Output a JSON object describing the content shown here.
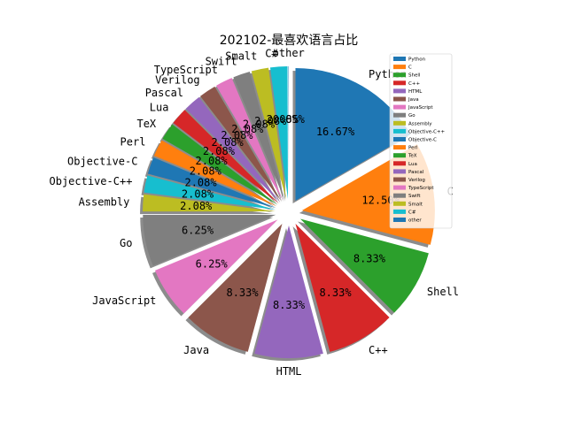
{
  "chart_data": {
    "type": "pie",
    "title": "202102-最喜欢语言占比",
    "legend_position": "top-right",
    "startangle_deg": 90,
    "counterclock": false,
    "shadow": true,
    "slices": [
      {
        "label": "Python",
        "value": 16.67,
        "pct_label": "16.67%",
        "color": "#1f77b4",
        "explode": 0.1
      },
      {
        "label": "C",
        "value": 12.5,
        "pct_label": "12.50%",
        "color": "#ff7f0e",
        "explode": 0.1
      },
      {
        "label": "Shell",
        "value": 8.33,
        "pct_label": "8.33%",
        "color": "#2ca02c",
        "explode": 0.1
      },
      {
        "label": "C++",
        "value": 8.33,
        "pct_label": "8.33%",
        "color": "#d62728",
        "explode": 0.1
      },
      {
        "label": "HTML",
        "value": 8.33,
        "pct_label": "8.33%",
        "color": "#9467bd",
        "explode": 0.1
      },
      {
        "label": "Java",
        "value": 8.33,
        "pct_label": "8.33%",
        "color": "#8c564b",
        "explode": 0.1
      },
      {
        "label": "JavaScript",
        "value": 6.25,
        "pct_label": "6.25%",
        "color": "#e377c2",
        "explode": 0.1
      },
      {
        "label": "Go",
        "value": 6.25,
        "pct_label": "6.25%",
        "color": "#7f7f7f",
        "explode": 0.1
      },
      {
        "label": "Assembly",
        "value": 2.08,
        "pct_label": "2.08%",
        "color": "#bcbd22",
        "explode": 0.1
      },
      {
        "label": "Objective-C++",
        "value": 2.08,
        "pct_label": "2.08%",
        "color": "#17becf",
        "explode": 0.1
      },
      {
        "label": "Objective-C",
        "value": 2.08,
        "pct_label": "2.08%",
        "color": "#1f77b4",
        "explode": 0.1
      },
      {
        "label": "Perl",
        "value": 2.08,
        "pct_label": "2.08%",
        "color": "#ff7f0e",
        "explode": 0.1
      },
      {
        "label": "TeX",
        "value": 2.08,
        "pct_label": "2.08%",
        "color": "#2ca02c",
        "explode": 0.1
      },
      {
        "label": "Lua",
        "value": 2.08,
        "pct_label": "2.08%",
        "color": "#d62728",
        "explode": 0.1
      },
      {
        "label": "Pascal",
        "value": 2.08,
        "pct_label": "2.08%",
        "color": "#9467bd",
        "explode": 0.1
      },
      {
        "label": "Verilog",
        "value": 2.08,
        "pct_label": "2.08%",
        "color": "#8c564b",
        "explode": 0.1
      },
      {
        "label": "TypeScript",
        "value": 2.08,
        "pct_label": "2.08%",
        "color": "#e377c2",
        "explode": 0.1
      },
      {
        "label": "Swift",
        "value": 2.08,
        "pct_label": "2.08%",
        "color": "#7f7f7f",
        "explode": 0.1
      },
      {
        "label": "Smalt",
        "value": 2.08,
        "pct_label": "2.08%",
        "color": "#bcbd22",
        "explode": 0.1
      },
      {
        "label": "C#",
        "value": 2.08,
        "pct_label": "2.08%",
        "color": "#17becf",
        "explode": 0.1
      },
      {
        "label": "other",
        "value": 0.05,
        "pct_label": "0.05%",
        "color": "#1f77b4",
        "explode": 0.1
      }
    ],
    "legend": [
      "Python",
      "C",
      "Shell",
      "C++",
      "HTML",
      "Java",
      "JavaScript",
      "Go",
      "Assembly",
      "Objective-C++",
      "Objective-C",
      "Perl",
      "TeX",
      "Lua",
      "Pascal",
      "Verilog",
      "TypeScript",
      "Swift",
      "Smalt",
      "C#",
      "other"
    ]
  }
}
